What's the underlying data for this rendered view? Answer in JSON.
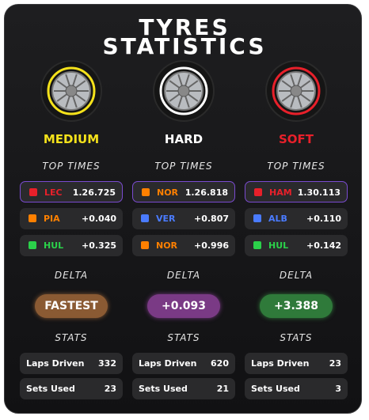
{
  "title": [
    "TYRES",
    "STATISTICS"
  ],
  "columns": [
    {
      "compound": "MEDIUM",
      "color": "#f5e21b",
      "top_times_label": "TOP TIMES",
      "times": [
        {
          "driver": "LEC",
          "time": "1.26.725",
          "color": "#e8202a"
        },
        {
          "driver": "PIA",
          "time": "+0.040",
          "color": "#ff8000"
        },
        {
          "driver": "HUL",
          "time": "+0.325",
          "color": "#2bd14a"
        }
      ],
      "delta_label": "DELTA",
      "delta": "FASTEST",
      "delta_color": "#8a5a33",
      "stats_label": "STATS",
      "stats": [
        {
          "label": "Laps Driven",
          "value": 332
        },
        {
          "label": "Sets Used",
          "value": 23
        }
      ]
    },
    {
      "compound": "HARD",
      "color": "#ffffff",
      "top_times_label": "TOP TIMES",
      "times": [
        {
          "driver": "NOR",
          "time": "1.26.818",
          "color": "#ff8000"
        },
        {
          "driver": "VER",
          "time": "+0.807",
          "color": "#4a7bff"
        },
        {
          "driver": "NOR",
          "time": "+0.996",
          "color": "#ff8000"
        }
      ],
      "delta_label": "DELTA",
      "delta": "+0.093",
      "delta_color": "#7a3a85",
      "stats_label": "STATS",
      "stats": [
        {
          "label": "Laps Driven",
          "value": 620
        },
        {
          "label": "Sets Used",
          "value": 21
        }
      ]
    },
    {
      "compound": "SOFT",
      "color": "#e8202a",
      "top_times_label": "TOP TIMES",
      "times": [
        {
          "driver": "HAM",
          "time": "1.30.113",
          "color": "#e8202a"
        },
        {
          "driver": "ALB",
          "time": "+0.110",
          "color": "#4a7bff"
        },
        {
          "driver": "HUL",
          "time": "+0.142",
          "color": "#2bd14a"
        }
      ],
      "delta_label": "DELTA",
      "delta": "+3.388",
      "delta_color": "#2f7a3a",
      "stats_label": "STATS",
      "stats": [
        {
          "label": "Laps Driven",
          "value": 23
        },
        {
          "label": "Sets Used",
          "value": 3
        }
      ]
    }
  ]
}
